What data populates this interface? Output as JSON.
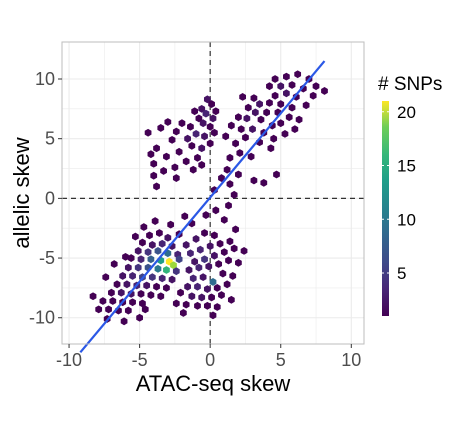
{
  "chart_data": {
    "type": "hexbin-scatter",
    "title": "",
    "xlabel": "ATAC-seq skew",
    "ylabel": "allelic skew",
    "xlim": [
      -10.5,
      10.9
    ],
    "ylim": [
      -12.2,
      13.1
    ],
    "x_ticks": [
      -10,
      -5,
      0,
      5,
      10
    ],
    "y_ticks": [
      -10,
      -5,
      0,
      5,
      10
    ],
    "x_tick_labels": [
      "-10",
      "-5",
      "0",
      "5",
      "10"
    ],
    "y_tick_labels": [
      "-10",
      "-5",
      "0",
      "5",
      "10"
    ],
    "grid": true,
    "reference_lines": {
      "x": 0,
      "y": 0,
      "style": "dashed"
    },
    "fit_line": {
      "x": [
        -9.2,
        8.1
      ],
      "y": [
        -12.9,
        11.5
      ],
      "color": "#2b58e6"
    },
    "legend": {
      "title": "# SNPs",
      "position": "right",
      "colormap": "viridis",
      "range": [
        1,
        21
      ],
      "ticks": [
        5,
        10,
        15,
        20
      ],
      "tick_labels": [
        "5",
        "10",
        "15",
        "20"
      ]
    },
    "colors": {
      "fit_line": "#2b58e6",
      "panel_border": "#bdbdbd",
      "grid": "#ebebeb"
    },
    "cells": [
      {
        "x": -0.2,
        "y": 8.3,
        "n": 2
      },
      {
        "x": 0.1,
        "y": 7.9,
        "n": 1
      },
      {
        "x": -0.6,
        "y": 7.5,
        "n": 2
      },
      {
        "x": -0.3,
        "y": 7.1,
        "n": 3
      },
      {
        "x": 0.2,
        "y": 6.7,
        "n": 2
      },
      {
        "x": -0.8,
        "y": 6.7,
        "n": 1
      },
      {
        "x": -1.1,
        "y": 7.3,
        "n": 1
      },
      {
        "x": 0.4,
        "y": 7.3,
        "n": 1
      },
      {
        "x": -0.5,
        "y": 6.3,
        "n": 2
      },
      {
        "x": 0.0,
        "y": 6.0,
        "n": 1
      },
      {
        "x": -1.4,
        "y": 6.0,
        "n": 1
      },
      {
        "x": -2.0,
        "y": 6.3,
        "n": 1
      },
      {
        "x": -2.4,
        "y": 5.6,
        "n": 1
      },
      {
        "x": -3.0,
        "y": 6.4,
        "n": 1
      },
      {
        "x": -3.5,
        "y": 5.9,
        "n": 1
      },
      {
        "x": -4.4,
        "y": 5.5,
        "n": 1
      },
      {
        "x": -2.7,
        "y": 4.9,
        "n": 1
      },
      {
        "x": -1.6,
        "y": 5.0,
        "n": 2
      },
      {
        "x": -1.0,
        "y": 5.4,
        "n": 3
      },
      {
        "x": -0.4,
        "y": 5.2,
        "n": 2
      },
      {
        "x": 0.3,
        "y": 5.5,
        "n": 1
      },
      {
        "x": -1.3,
        "y": 4.4,
        "n": 1
      },
      {
        "x": -0.6,
        "y": 4.2,
        "n": 2
      },
      {
        "x": 0.0,
        "y": 4.6,
        "n": 1
      },
      {
        "x": -3.8,
        "y": 4.2,
        "n": 1
      },
      {
        "x": -4.2,
        "y": 3.7,
        "n": 1
      },
      {
        "x": -3.1,
        "y": 3.5,
        "n": 1
      },
      {
        "x": -2.2,
        "y": 3.9,
        "n": 1
      },
      {
        "x": -1.7,
        "y": 3.1,
        "n": 1
      },
      {
        "x": -0.9,
        "y": 3.4,
        "n": 1
      },
      {
        "x": -4.0,
        "y": 2.9,
        "n": 1
      },
      {
        "x": -3.3,
        "y": 2.3,
        "n": 1
      },
      {
        "x": -2.5,
        "y": 2.6,
        "n": 1
      },
      {
        "x": -1.2,
        "y": 2.4,
        "n": 1
      },
      {
        "x": -0.6,
        "y": 2.8,
        "n": 1
      },
      {
        "x": -4.0,
        "y": 1.9,
        "n": 1
      },
      {
        "x": -3.8,
        "y": 1.0,
        "n": 1
      },
      {
        "x": -2.4,
        "y": 1.7,
        "n": 1
      },
      {
        "x": 2.3,
        "y": 8.5,
        "n": 1
      },
      {
        "x": 3.1,
        "y": 8.4,
        "n": 1
      },
      {
        "x": 3.5,
        "y": 7.9,
        "n": 2
      },
      {
        "x": 4.2,
        "y": 8.0,
        "n": 1
      },
      {
        "x": 2.7,
        "y": 7.6,
        "n": 1
      },
      {
        "x": 3.2,
        "y": 7.2,
        "n": 2
      },
      {
        "x": 4.0,
        "y": 7.2,
        "n": 1
      },
      {
        "x": 2.0,
        "y": 6.8,
        "n": 1
      },
      {
        "x": 2.6,
        "y": 6.7,
        "n": 2
      },
      {
        "x": 3.6,
        "y": 6.6,
        "n": 1
      },
      {
        "x": 1.5,
        "y": 6.1,
        "n": 1
      },
      {
        "x": 2.2,
        "y": 5.8,
        "n": 1
      },
      {
        "x": 3.0,
        "y": 5.8,
        "n": 2
      },
      {
        "x": 3.8,
        "y": 5.5,
        "n": 1
      },
      {
        "x": 1.1,
        "y": 5.2,
        "n": 1
      },
      {
        "x": 2.5,
        "y": 5.1,
        "n": 1
      },
      {
        "x": 1.8,
        "y": 4.6,
        "n": 1
      },
      {
        "x": 3.5,
        "y": 4.7,
        "n": 1
      },
      {
        "x": 4.5,
        "y": 5.0,
        "n": 1
      },
      {
        "x": 2.1,
        "y": 3.8,
        "n": 1
      },
      {
        "x": 1.4,
        "y": 3.4,
        "n": 1
      },
      {
        "x": 2.9,
        "y": 3.5,
        "n": 1
      },
      {
        "x": 1.2,
        "y": 2.4,
        "n": 1
      },
      {
        "x": 2.0,
        "y": 2.0,
        "n": 1
      },
      {
        "x": 0.8,
        "y": 1.7,
        "n": 1
      },
      {
        "x": 1.4,
        "y": 1.2,
        "n": 1
      },
      {
        "x": 3.1,
        "y": 1.5,
        "n": 1
      },
      {
        "x": 0.3,
        "y": 0.7,
        "n": 1
      },
      {
        "x": 1.7,
        "y": 0.3,
        "n": 1
      },
      {
        "x": 0.4,
        "y": -1.0,
        "n": 1
      },
      {
        "x": 1.3,
        "y": -0.6,
        "n": 1
      },
      {
        "x": 4.6,
        "y": 10.0,
        "n": 1
      },
      {
        "x": 5.4,
        "y": 10.2,
        "n": 1
      },
      {
        "x": 6.2,
        "y": 10.4,
        "n": 1
      },
      {
        "x": 7.0,
        "y": 10.0,
        "n": 1
      },
      {
        "x": 4.2,
        "y": 9.4,
        "n": 1
      },
      {
        "x": 5.0,
        "y": 9.4,
        "n": 2
      },
      {
        "x": 5.8,
        "y": 9.5,
        "n": 1
      },
      {
        "x": 6.6,
        "y": 9.2,
        "n": 1
      },
      {
        "x": 7.5,
        "y": 9.4,
        "n": 1
      },
      {
        "x": 7.3,
        "y": 8.6,
        "n": 1
      },
      {
        "x": 8.1,
        "y": 9.0,
        "n": 1
      },
      {
        "x": 4.6,
        "y": 8.6,
        "n": 1
      },
      {
        "x": 5.4,
        "y": 8.8,
        "n": 2
      },
      {
        "x": 6.1,
        "y": 8.5,
        "n": 1
      },
      {
        "x": 5.0,
        "y": 7.9,
        "n": 1
      },
      {
        "x": 5.8,
        "y": 7.6,
        "n": 1
      },
      {
        "x": 6.8,
        "y": 7.8,
        "n": 1
      },
      {
        "x": 4.8,
        "y": 7.2,
        "n": 1
      },
      {
        "x": 5.6,
        "y": 6.8,
        "n": 1
      },
      {
        "x": 6.3,
        "y": 6.6,
        "n": 1
      },
      {
        "x": 5.0,
        "y": 6.3,
        "n": 1
      },
      {
        "x": 4.4,
        "y": 6.1,
        "n": 1
      },
      {
        "x": 6.0,
        "y": 5.8,
        "n": 1
      },
      {
        "x": 5.3,
        "y": 5.4,
        "n": 1
      },
      {
        "x": 4.3,
        "y": 4.2,
        "n": 1
      },
      {
        "x": 4.7,
        "y": 2.0,
        "n": 1
      },
      {
        "x": 3.8,
        "y": 1.3,
        "n": 1
      },
      {
        "x": -4.3,
        "y": -3.1,
        "n": 1
      },
      {
        "x": -3.6,
        "y": -2.9,
        "n": 1
      },
      {
        "x": -3.0,
        "y": -3.3,
        "n": 2
      },
      {
        "x": -4.8,
        "y": -3.7,
        "n": 1
      },
      {
        "x": -4.1,
        "y": -3.9,
        "n": 2
      },
      {
        "x": -3.4,
        "y": -3.8,
        "n": 3
      },
      {
        "x": -2.7,
        "y": -4.0,
        "n": 2
      },
      {
        "x": -5.1,
        "y": -4.4,
        "n": 2
      },
      {
        "x": -4.4,
        "y": -4.5,
        "n": 4
      },
      {
        "x": -3.7,
        "y": -4.4,
        "n": 6
      },
      {
        "x": -3.0,
        "y": -4.6,
        "n": 8
      },
      {
        "x": -2.3,
        "y": -4.7,
        "n": 3
      },
      {
        "x": -5.6,
        "y": -5.0,
        "n": 1
      },
      {
        "x": -4.9,
        "y": -5.1,
        "n": 3
      },
      {
        "x": -4.2,
        "y": -5.1,
        "n": 7
      },
      {
        "x": -3.5,
        "y": -5.2,
        "n": 12
      },
      {
        "x": -2.9,
        "y": -5.3,
        "n": 21
      },
      {
        "x": -2.6,
        "y": -5.6,
        "n": 18
      },
      {
        "x": -2.2,
        "y": -5.1,
        "n": 5
      },
      {
        "x": -5.8,
        "y": -5.8,
        "n": 2
      },
      {
        "x": -5.1,
        "y": -5.8,
        "n": 4
      },
      {
        "x": -4.4,
        "y": -5.8,
        "n": 6
      },
      {
        "x": -3.7,
        "y": -5.9,
        "n": 9
      },
      {
        "x": -3.1,
        "y": -6.0,
        "n": 14
      },
      {
        "x": -2.4,
        "y": -6.1,
        "n": 4
      },
      {
        "x": -6.2,
        "y": -6.5,
        "n": 2
      },
      {
        "x": -5.5,
        "y": -6.5,
        "n": 3
      },
      {
        "x": -4.8,
        "y": -6.6,
        "n": 5
      },
      {
        "x": -4.1,
        "y": -6.6,
        "n": 4
      },
      {
        "x": -3.4,
        "y": -6.7,
        "n": 3
      },
      {
        "x": -2.7,
        "y": -6.8,
        "n": 2
      },
      {
        "x": -6.6,
        "y": -7.2,
        "n": 1
      },
      {
        "x": -5.9,
        "y": -7.2,
        "n": 2
      },
      {
        "x": -5.2,
        "y": -7.3,
        "n": 3
      },
      {
        "x": -4.5,
        "y": -7.3,
        "n": 2
      },
      {
        "x": -3.8,
        "y": -7.4,
        "n": 1
      },
      {
        "x": -3.1,
        "y": -7.5,
        "n": 1
      },
      {
        "x": -7.0,
        "y": -7.9,
        "n": 1
      },
      {
        "x": -6.3,
        "y": -7.9,
        "n": 2
      },
      {
        "x": -5.6,
        "y": -8.0,
        "n": 2
      },
      {
        "x": -4.9,
        "y": -8.0,
        "n": 1
      },
      {
        "x": -4.2,
        "y": -8.1,
        "n": 1
      },
      {
        "x": -3.5,
        "y": -8.2,
        "n": 1
      },
      {
        "x": -7.6,
        "y": -8.6,
        "n": 1
      },
      {
        "x": -6.9,
        "y": -8.6,
        "n": 1
      },
      {
        "x": -6.2,
        "y": -8.7,
        "n": 1
      },
      {
        "x": -5.5,
        "y": -8.7,
        "n": 1
      },
      {
        "x": -4.8,
        "y": -8.8,
        "n": 1
      },
      {
        "x": -8.3,
        "y": -8.2,
        "n": 1
      },
      {
        "x": -7.9,
        "y": -9.3,
        "n": 1
      },
      {
        "x": -7.2,
        "y": -9.3,
        "n": 1
      },
      {
        "x": -6.5,
        "y": -9.4,
        "n": 1
      },
      {
        "x": -5.8,
        "y": -9.4,
        "n": 1
      },
      {
        "x": -6.1,
        "y": -10.3,
        "n": 1
      },
      {
        "x": -5.0,
        "y": -10.0,
        "n": 1
      },
      {
        "x": -4.6,
        "y": -9.3,
        "n": 1
      },
      {
        "x": -7.3,
        "y": -10.1,
        "n": 1
      },
      {
        "x": -6.0,
        "y": -4.9,
        "n": 1
      },
      {
        "x": -6.8,
        "y": -5.5,
        "n": 1
      },
      {
        "x": -7.4,
        "y": -6.6,
        "n": 1
      },
      {
        "x": -5.3,
        "y": -3.2,
        "n": 1
      },
      {
        "x": -4.7,
        "y": -2.4,
        "n": 1
      },
      {
        "x": -3.9,
        "y": -1.9,
        "n": 1
      },
      {
        "x": -2.2,
        "y": -3.0,
        "n": 1
      },
      {
        "x": -2.8,
        "y": -2.2,
        "n": 1
      },
      {
        "x": -1.8,
        "y": -1.5,
        "n": 1
      },
      {
        "x": -1.3,
        "y": -2.1,
        "n": 1
      },
      {
        "x": -1.7,
        "y": -3.9,
        "n": 2
      },
      {
        "x": -1.0,
        "y": -3.4,
        "n": 2
      },
      {
        "x": -0.4,
        "y": -2.9,
        "n": 1
      },
      {
        "x": 0.3,
        "y": -3.1,
        "n": 1
      },
      {
        "x": -1.4,
        "y": -4.6,
        "n": 3
      },
      {
        "x": -0.7,
        "y": -4.3,
        "n": 3
      },
      {
        "x": 0.0,
        "y": -4.0,
        "n": 2
      },
      {
        "x": 0.7,
        "y": -3.8,
        "n": 1
      },
      {
        "x": 1.4,
        "y": -3.6,
        "n": 1
      },
      {
        "x": -1.1,
        "y": -5.3,
        "n": 2
      },
      {
        "x": -0.4,
        "y": -5.1,
        "n": 4
      },
      {
        "x": 0.3,
        "y": -4.8,
        "n": 2
      },
      {
        "x": 1.0,
        "y": -4.5,
        "n": 1
      },
      {
        "x": 1.7,
        "y": -4.2,
        "n": 1
      },
      {
        "x": -1.5,
        "y": -6.0,
        "n": 2
      },
      {
        "x": -0.8,
        "y": -5.8,
        "n": 3
      },
      {
        "x": -0.1,
        "y": -5.7,
        "n": 2
      },
      {
        "x": 0.6,
        "y": -5.5,
        "n": 1
      },
      {
        "x": 1.3,
        "y": -5.2,
        "n": 1
      },
      {
        "x": -1.2,
        "y": -6.7,
        "n": 3
      },
      {
        "x": -0.5,
        "y": -6.6,
        "n": 2
      },
      {
        "x": 0.2,
        "y": -7.0,
        "n": 8
      },
      {
        "x": 0.9,
        "y": -6.3,
        "n": 1
      },
      {
        "x": -1.6,
        "y": -7.4,
        "n": 2
      },
      {
        "x": -0.9,
        "y": -7.4,
        "n": 3
      },
      {
        "x": -0.2,
        "y": -7.6,
        "n": 2
      },
      {
        "x": 0.5,
        "y": -7.5,
        "n": 1
      },
      {
        "x": 1.2,
        "y": -7.2,
        "n": 1
      },
      {
        "x": -1.3,
        "y": -8.2,
        "n": 2
      },
      {
        "x": -0.6,
        "y": -8.3,
        "n": 2
      },
      {
        "x": 0.1,
        "y": -8.3,
        "n": 1
      },
      {
        "x": 0.8,
        "y": -8.1,
        "n": 1
      },
      {
        "x": -0.9,
        "y": -9.0,
        "n": 1
      },
      {
        "x": -0.2,
        "y": -9.0,
        "n": 1
      },
      {
        "x": 0.5,
        "y": -9.1,
        "n": 1
      },
      {
        "x": -1.7,
        "y": -8.9,
        "n": 1
      },
      {
        "x": 1.5,
        "y": -8.5,
        "n": 1
      },
      {
        "x": 0.2,
        "y": -9.8,
        "n": 1
      },
      {
        "x": -1.9,
        "y": -9.6,
        "n": 1
      },
      {
        "x": -2.4,
        "y": -8.8,
        "n": 1
      },
      {
        "x": -2.1,
        "y": -7.9,
        "n": 1
      },
      {
        "x": 2.0,
        "y": -5.4,
        "n": 1
      },
      {
        "x": 2.4,
        "y": -4.4,
        "n": 1
      },
      {
        "x": 1.6,
        "y": -6.5,
        "n": 1
      },
      {
        "x": 1.0,
        "y": -1.8,
        "n": 1
      },
      {
        "x": -0.3,
        "y": -1.4,
        "n": 1
      },
      {
        "x": 1.8,
        "y": -2.6,
        "n": 1
      }
    ]
  }
}
